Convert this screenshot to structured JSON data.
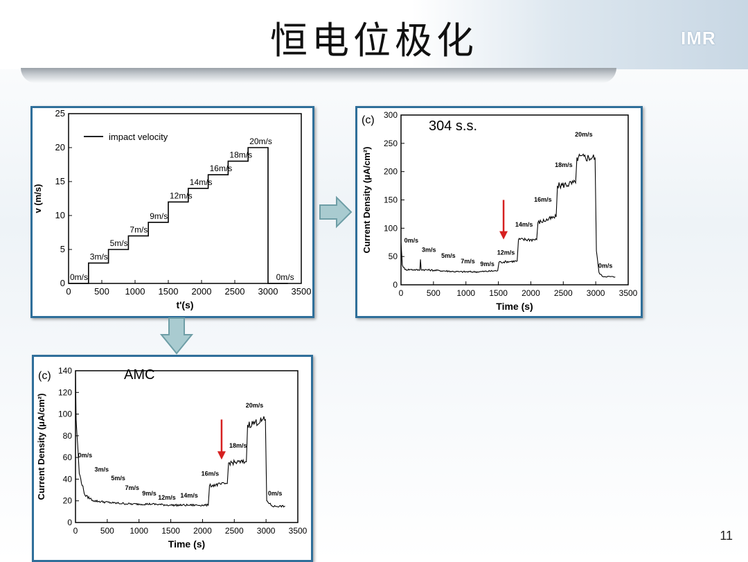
{
  "slide": {
    "title": "恒电位极化",
    "logo": "IMR",
    "page_number": "11"
  },
  "colors": {
    "panel_border": "#2f6f9a",
    "arrow_fill": "#a9cbd0",
    "arrow_stroke": "#6e9ea6",
    "red_arrow": "#d62020"
  },
  "chart_data": [
    {
      "id": "velocity",
      "type": "line",
      "xlabel": "t'(s)",
      "ylabel": "v (m/s)",
      "xlim": [
        0,
        3500
      ],
      "ylim": [
        0,
        25
      ],
      "xticks": [
        0,
        500,
        1000,
        1500,
        2000,
        2500,
        3000,
        3500
      ],
      "yticks": [
        0,
        5,
        10,
        15,
        20,
        25
      ],
      "legend": {
        "label": "impact velocity",
        "placement": "top-left"
      },
      "series": [
        {
          "name": "impact velocity",
          "x": [
            0,
            300,
            300,
            600,
            600,
            900,
            900,
            1200,
            1200,
            1500,
            1500,
            1800,
            1800,
            2100,
            2100,
            2400,
            2400,
            2700,
            2700,
            3000,
            3000,
            3300
          ],
          "y": [
            0,
            0,
            3,
            3,
            5,
            5,
            7,
            7,
            9,
            9,
            12,
            12,
            14,
            14,
            16,
            16,
            18,
            18,
            20,
            20,
            0,
            0
          ]
        }
      ],
      "annotations": [
        {
          "text": "0m/s",
          "x": 0,
          "y": 0
        },
        {
          "text": "3m/s",
          "x": 300,
          "y": 3
        },
        {
          "text": "5m/s",
          "x": 600,
          "y": 5
        },
        {
          "text": "7m/s",
          "x": 900,
          "y": 7
        },
        {
          "text": "9m/s",
          "x": 1200,
          "y": 9
        },
        {
          "text": "12m/s",
          "x": 1500,
          "y": 12
        },
        {
          "text": "14m/s",
          "x": 1800,
          "y": 14
        },
        {
          "text": "16m/s",
          "x": 2100,
          "y": 16
        },
        {
          "text": "18m/s",
          "x": 2400,
          "y": 18
        },
        {
          "text": "20m/s",
          "x": 2700,
          "y": 20
        },
        {
          "text": "0m/s",
          "x": 3100,
          "y": 0
        }
      ]
    },
    {
      "id": "ss304",
      "type": "line",
      "panel_label": "(c)",
      "title": "304 s.s.",
      "xlabel": "Time (s)",
      "ylabel": "Current Density (μA/cm²)",
      "xlim": [
        0,
        3500
      ],
      "ylim": [
        0,
        300
      ],
      "xticks": [
        0,
        500,
        1000,
        1500,
        2000,
        2500,
        3000,
        3500
      ],
      "yticks": [
        0,
        50,
        100,
        150,
        200,
        250,
        300
      ],
      "series": [
        {
          "x": [
            0,
            20,
            60,
            150,
            290,
            300,
            310,
            600,
            900,
            1200,
            1490,
            1510,
            1790,
            1810,
            2090,
            2110,
            2390,
            2410,
            2690,
            2710,
            2990,
            3010,
            3050,
            3100,
            3300
          ],
          "y": [
            75,
            35,
            27,
            27,
            26,
            45,
            27,
            25,
            23,
            23,
            25,
            40,
            42,
            80,
            80,
            110,
            120,
            175,
            180,
            225,
            225,
            60,
            22,
            15,
            14
          ]
        }
      ],
      "annotations": [
        {
          "text": "0m/s",
          "x": 50,
          "y": 75
        },
        {
          "text": "3m/s",
          "x": 320,
          "y": 58
        },
        {
          "text": "5m/s",
          "x": 620,
          "y": 48
        },
        {
          "text": "7m/s",
          "x": 920,
          "y": 38
        },
        {
          "text": "9m/s",
          "x": 1220,
          "y": 33
        },
        {
          "text": "12m/s",
          "x": 1480,
          "y": 53
        },
        {
          "text": "14m/s",
          "x": 1760,
          "y": 103
        },
        {
          "text": "16m/s",
          "x": 2050,
          "y": 147
        },
        {
          "text": "18m/s",
          "x": 2370,
          "y": 208
        },
        {
          "text": "20m/s",
          "x": 2680,
          "y": 262
        },
        {
          "text": "0m/s",
          "x": 3040,
          "y": 30
        }
      ],
      "marker_arrow": {
        "x": 1580,
        "y_from": 150,
        "y_to": 80
      }
    },
    {
      "id": "amc",
      "type": "line",
      "panel_label": "(c)",
      "title": "AMC",
      "xlabel": "Time (s)",
      "ylabel": "Current Density (μA/cm²)",
      "xlim": [
        0,
        3500
      ],
      "ylim": [
        0,
        140
      ],
      "xticks": [
        0,
        500,
        1000,
        1500,
        2000,
        2500,
        3000,
        3500
      ],
      "yticks": [
        0,
        20,
        40,
        60,
        80,
        100,
        120,
        140
      ],
      "series": [
        {
          "x": [
            0,
            10,
            60,
            150,
            290,
            600,
            900,
            1200,
            1500,
            1800,
            2090,
            2110,
            2390,
            2410,
            2690,
            2710,
            2990,
            3010,
            3100,
            3300
          ],
          "y": [
            140,
            95,
            45,
            25,
            20,
            18,
            17,
            17,
            16,
            16,
            16,
            34,
            36,
            55,
            56,
            90,
            95,
            20,
            15,
            15
          ]
        }
      ],
      "annotations": [
        {
          "text": "0m/s",
          "x": 40,
          "y": 60
        },
        {
          "text": "3m/s",
          "x": 300,
          "y": 47
        },
        {
          "text": "5m/s",
          "x": 560,
          "y": 39
        },
        {
          "text": "7m/s",
          "x": 780,
          "y": 30
        },
        {
          "text": "9m/s",
          "x": 1050,
          "y": 25
        },
        {
          "text": "12m/s",
          "x": 1300,
          "y": 21
        },
        {
          "text": "14m/s",
          "x": 1650,
          "y": 23
        },
        {
          "text": "16m/s",
          "x": 1980,
          "y": 43
        },
        {
          "text": "18m/s",
          "x": 2420,
          "y": 69
        },
        {
          "text": "20m/s",
          "x": 2680,
          "y": 106
        },
        {
          "text": "0m/s",
          "x": 3030,
          "y": 25
        }
      ],
      "marker_arrow": {
        "x": 2300,
        "y_from": 95,
        "y_to": 58
      }
    }
  ]
}
